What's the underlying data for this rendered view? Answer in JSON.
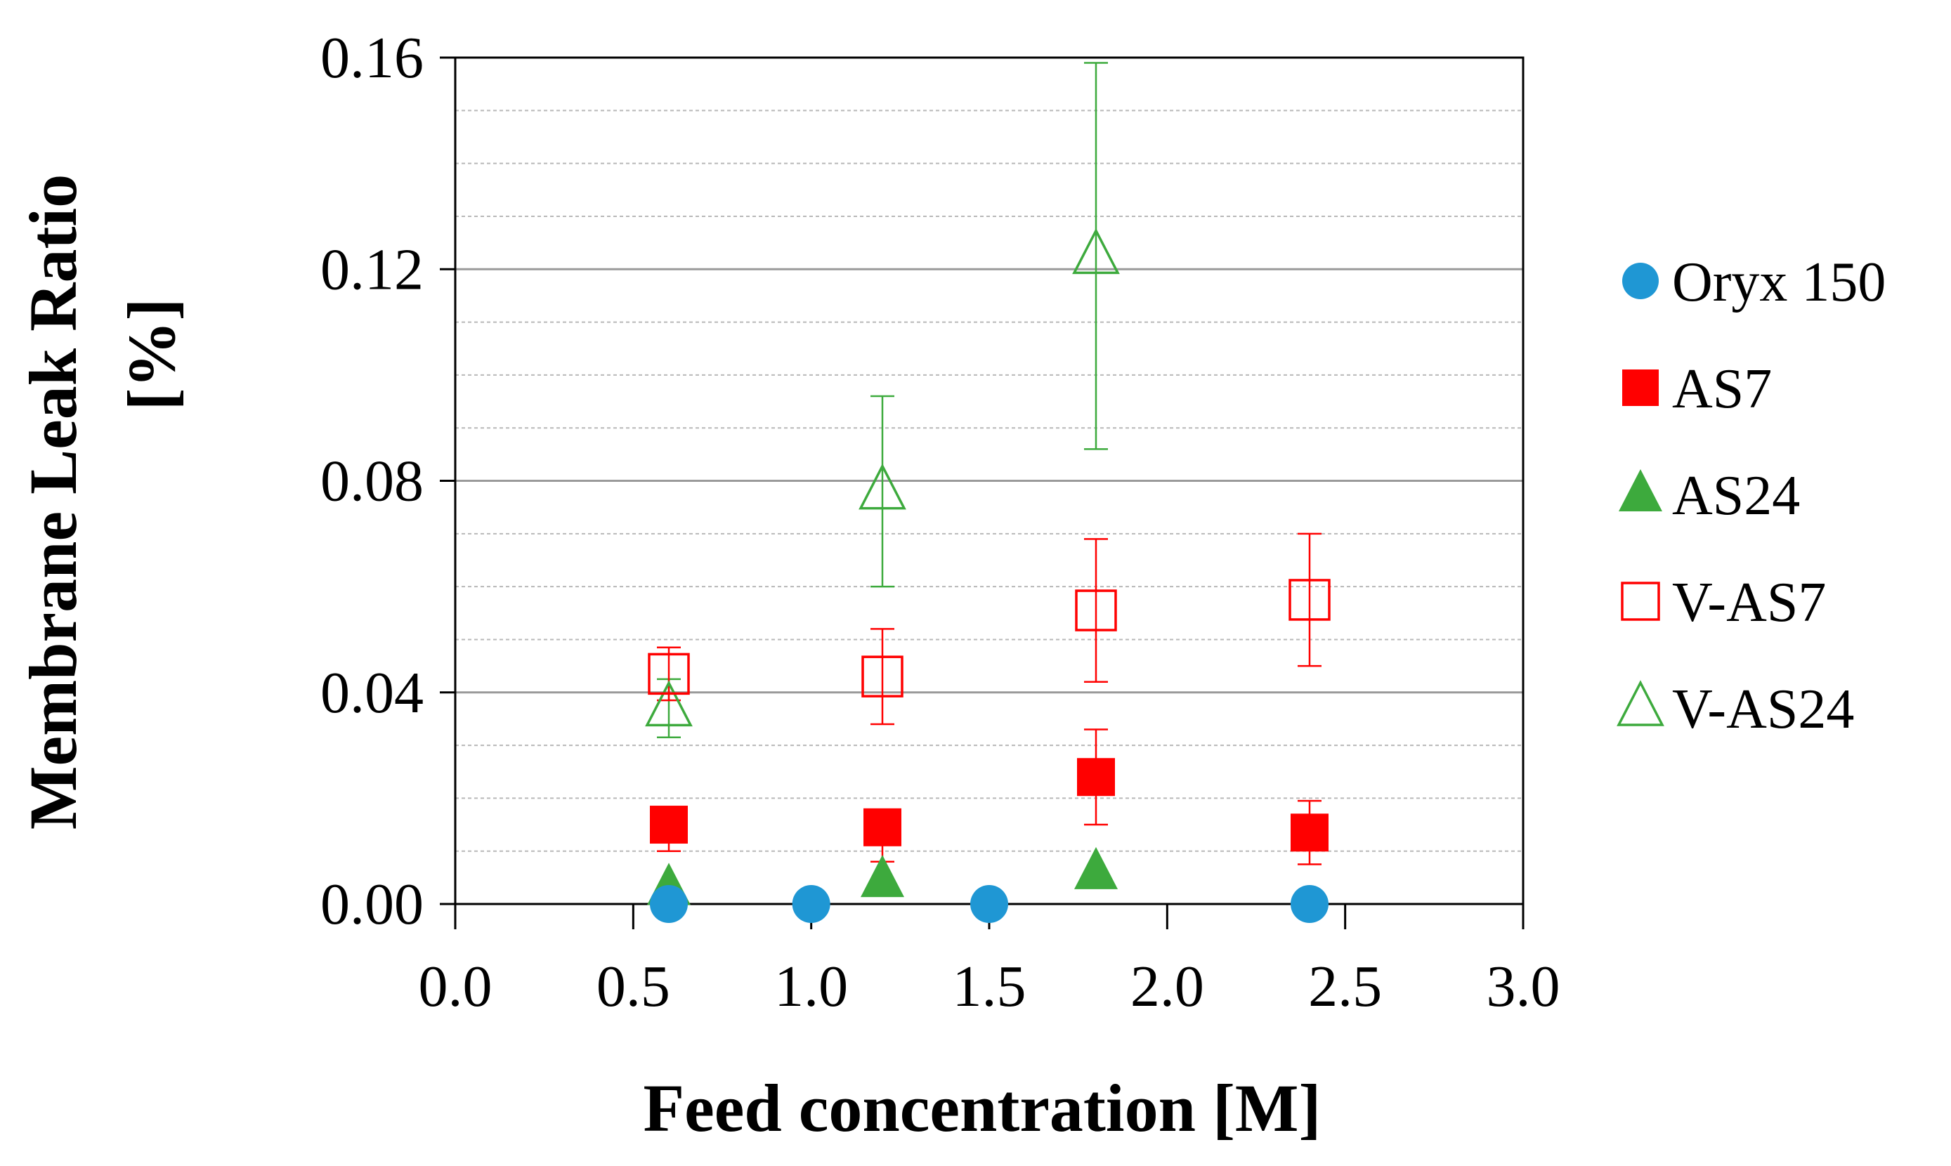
{
  "chart_data": {
    "type": "scatter",
    "title": "",
    "xlabel": "Feed concentration [M]",
    "ylabel_line1": "Membrane Leak Ratio",
    "ylabel_line2": "[%]",
    "xlim": [
      0,
      3
    ],
    "ylim": [
      0,
      0.16
    ],
    "x_ticks": [
      0,
      0.5,
      1,
      1.5,
      2,
      2.5,
      3
    ],
    "x_tick_labels": [
      "0.0",
      "0.5",
      "1.0",
      "1.5",
      "2.0",
      "2.5",
      "3.0"
    ],
    "y_ticks": [
      0,
      0.04,
      0.08,
      0.12,
      0.16
    ],
    "y_tick_labels": [
      "0.00",
      "0.04",
      "0.08",
      "0.12",
      "0.16"
    ],
    "y_minor_gridline_step": 0.01,
    "grid": true,
    "legend_position": "right",
    "series": [
      {
        "name": "Oryx 150",
        "marker": "circle",
        "filled": true,
        "color": "#1F97D4",
        "points": [
          {
            "x": 0.6,
            "y": 0.0
          },
          {
            "x": 1.0,
            "y": 0.0
          },
          {
            "x": 1.5,
            "y": 0.0
          },
          {
            "x": 2.4,
            "y": 0.0
          }
        ]
      },
      {
        "name": "AS7",
        "marker": "square",
        "filled": true,
        "color": "#FF0000",
        "points": [
          {
            "x": 0.6,
            "y": 0.015,
            "err_low": 0.01,
            "err_high": 0.016
          },
          {
            "x": 1.2,
            "y": 0.0145,
            "err_low": 0.008,
            "err_high": 0.015
          },
          {
            "x": 1.8,
            "y": 0.024,
            "err_low": 0.015,
            "err_high": 0.033
          },
          {
            "x": 2.4,
            "y": 0.0135,
            "err_low": 0.0075,
            "err_high": 0.0195
          }
        ]
      },
      {
        "name": "AS24",
        "marker": "triangle",
        "filled": true,
        "color": "#3DAA3D",
        "points": [
          {
            "x": 0.6,
            "y": 0.003
          },
          {
            "x": 1.2,
            "y": 0.0045
          },
          {
            "x": 1.8,
            "y": 0.006
          }
        ]
      },
      {
        "name": "V-AS7",
        "marker": "square",
        "filled": false,
        "color": "#FF0000",
        "points": [
          {
            "x": 0.6,
            "y": 0.0435,
            "err_low": 0.0385,
            "err_high": 0.0485
          },
          {
            "x": 1.2,
            "y": 0.043,
            "err_low": 0.034,
            "err_high": 0.052
          },
          {
            "x": 1.8,
            "y": 0.0555,
            "err_low": 0.042,
            "err_high": 0.069
          },
          {
            "x": 2.4,
            "y": 0.0575,
            "err_low": 0.045,
            "err_high": 0.07
          }
        ]
      },
      {
        "name": "V-AS24",
        "marker": "triangle",
        "filled": false,
        "color": "#3DAA3D",
        "points": [
          {
            "x": 0.6,
            "y": 0.037,
            "err_low": 0.0315,
            "err_high": 0.0425
          },
          {
            "x": 1.2,
            "y": 0.078,
            "err_low": 0.06,
            "err_high": 0.096
          },
          {
            "x": 1.8,
            "y": 0.1225,
            "err_low": 0.086,
            "err_high": 0.159
          }
        ]
      }
    ]
  }
}
